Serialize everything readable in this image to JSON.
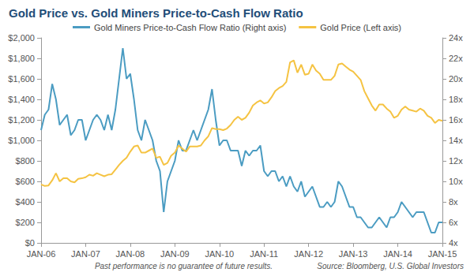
{
  "chart_data": {
    "type": "line",
    "title": "Gold Price vs. Gold Miners Price-to-Cash Flow Ratio",
    "footnote": "Past performance is no guarantee of future results.",
    "source": "Source: Bloomberg, U.S. Global Investors",
    "categories": [
      "JAN-06",
      null,
      null,
      null,
      null,
      null,
      null,
      null,
      null,
      null,
      null,
      null,
      "JAN-07",
      null,
      null,
      null,
      null,
      null,
      null,
      null,
      null,
      null,
      null,
      null,
      "JAN-08",
      null,
      null,
      null,
      null,
      null,
      null,
      null,
      null,
      null,
      null,
      null,
      "JAN-09",
      null,
      null,
      null,
      null,
      null,
      null,
      null,
      null,
      null,
      null,
      null,
      "JAN-10",
      null,
      null,
      null,
      null,
      null,
      null,
      null,
      null,
      null,
      null,
      null,
      "JAN-11",
      null,
      null,
      null,
      null,
      null,
      null,
      null,
      null,
      null,
      null,
      null,
      "JAN-12",
      null,
      null,
      null,
      null,
      null,
      null,
      null,
      null,
      null,
      null,
      null,
      "JAN-13",
      null,
      null,
      null,
      null,
      null,
      null,
      null,
      null,
      null,
      null,
      null,
      "JAN-14",
      null,
      null,
      null,
      null,
      null,
      null,
      null,
      null,
      null,
      null,
      null,
      "JAN-15"
    ],
    "series": [
      {
        "name": "Gold Miners Price-to-Cash Flow Ratio (Right axis)",
        "color": "#4b9cc2",
        "axis": "y2",
        "values": [
          15,
          16.5,
          17,
          19.5,
          18,
          15.5,
          16,
          16.5,
          14.5,
          15,
          16,
          16,
          14,
          15,
          16,
          16.5,
          16,
          15,
          16.5,
          15,
          17,
          20,
          23,
          20,
          20.5,
          18,
          15,
          14,
          16,
          15,
          14,
          12,
          11,
          7,
          10,
          11,
          12,
          14,
          13,
          13,
          14,
          15,
          14,
          15,
          16,
          17,
          19,
          16,
          13.5,
          14,
          14,
          13,
          13,
          13,
          11.5,
          13,
          12.5,
          13,
          13,
          13.5,
          11,
          10.5,
          11,
          11,
          10,
          10.5,
          9.5,
          10.5,
          9.5,
          9,
          10,
          8.5,
          9,
          9.5,
          8.5,
          7.5,
          7.5,
          8,
          7.5,
          8,
          10,
          9.5,
          8.5,
          7.5,
          7.5,
          6.5,
          6.5,
          6,
          5.5,
          5.5,
          6,
          6.5,
          6,
          5.5,
          6.5,
          6.5,
          7,
          8,
          7.5,
          7,
          6.5,
          7,
          7,
          7,
          6,
          5,
          5,
          6,
          6
        ]
      },
      {
        "name": "Gold Price (Left axis)",
        "color": "#f5c342",
        "axis": "y",
        "values": [
          570,
          555,
          560,
          610,
          680,
          600,
          630,
          630,
          600,
          590,
          625,
          630,
          640,
          665,
          655,
          680,
          665,
          650,
          665,
          670,
          715,
          760,
          800,
          830,
          890,
          940,
          950,
          880,
          880,
          900,
          920,
          830,
          840,
          760,
          780,
          850,
          880,
          950,
          920,
          890,
          940,
          940,
          940,
          950,
          1000,
          1040,
          1120,
          1110,
          1110,
          1100,
          1115,
          1150,
          1200,
          1230,
          1200,
          1220,
          1270,
          1340,
          1370,
          1390,
          1360,
          1370,
          1420,
          1480,
          1510,
          1530,
          1570,
          1760,
          1780,
          1660,
          1740,
          1640,
          1650,
          1740,
          1680,
          1650,
          1590,
          1590,
          1590,
          1630,
          1740,
          1750,
          1720,
          1690,
          1670,
          1630,
          1590,
          1480,
          1410,
          1340,
          1290,
          1350,
          1350,
          1310,
          1280,
          1220,
          1240,
          1300,
          1330,
          1300,
          1290,
          1280,
          1310,
          1290,
          1240,
          1220,
          1170,
          1200,
          1190
        ]
      }
    ],
    "ylim": [
      0,
      2000
    ],
    "yticks": [
      {
        "value": 0,
        "label": "$0"
      },
      {
        "value": 200,
        "label": "$200"
      },
      {
        "value": 400,
        "label": "$400"
      },
      {
        "value": 600,
        "label": "$600"
      },
      {
        "value": 800,
        "label": "$800"
      },
      {
        "value": 1000,
        "label": "$1,000"
      },
      {
        "value": 1200,
        "label": "$1,200"
      },
      {
        "value": 1400,
        "label": "$1,400"
      },
      {
        "value": 1600,
        "label": "$1,600"
      },
      {
        "value": 1800,
        "label": "$1,800"
      },
      {
        "value": 2000,
        "label": "$2,000"
      }
    ],
    "y2lim": [
      4,
      24
    ],
    "y2ticks": [
      {
        "value": 4,
        "label": "4x"
      },
      {
        "value": 6,
        "label": "6x"
      },
      {
        "value": 8,
        "label": "8x"
      },
      {
        "value": 10,
        "label": "10x"
      },
      {
        "value": 12,
        "label": "12x"
      },
      {
        "value": 14,
        "label": "14x"
      },
      {
        "value": 16,
        "label": "16x"
      },
      {
        "value": 18,
        "label": "18x"
      },
      {
        "value": 20,
        "label": "20x"
      },
      {
        "value": 22,
        "label": "22x"
      },
      {
        "value": 24,
        "label": "24x"
      }
    ],
    "grid": false,
    "legend": "top"
  }
}
